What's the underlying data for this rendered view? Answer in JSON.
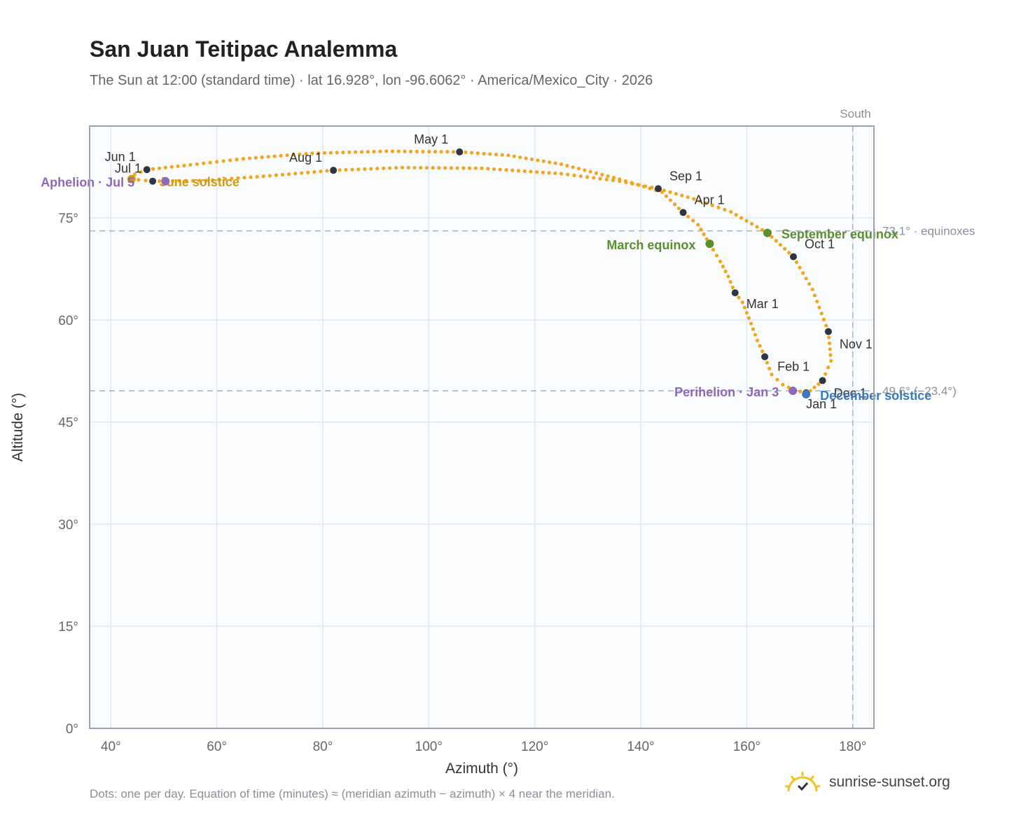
{
  "header": {
    "title": "San Juan Teitipac Analemma",
    "subtitle": "The Sun at 12:00 (standard time) · lat 16.928°, lon -96.6062° · America/Mexico_City · 2026"
  },
  "footer": {
    "note": "Dots: one per day. Equation of time (minutes) ≈ (meridian azimuth − azimuth) × 4 near the meridian.",
    "brand": "sunrise-sunset.org"
  },
  "colors": {
    "curve": "#f2a51f",
    "month_marker": "#2f3640",
    "equinox": "#5a8f2e",
    "solstice_summer": "#d29a12",
    "solstice_winter": "#3a78c0",
    "apsis": "#8e68b8",
    "plot_bg": "#f9fbfd",
    "grid": "#e4e8ee",
    "axis": "#9aa3ad",
    "refline": "#9fb3c3"
  },
  "chart_data": {
    "type": "scatter",
    "title": "San Juan Teitipac Analemma",
    "xlabel": "Azimuth (°)",
    "ylabel": "Altitude (°)",
    "xlim": [
      36,
      184
    ],
    "ylim": [
      0,
      88.5
    ],
    "x_ticks": [
      40,
      60,
      80,
      100,
      120,
      140,
      160,
      180
    ],
    "x_tick_labels": [
      "40°",
      "60°",
      "80°",
      "100°",
      "120°",
      "140°",
      "160°",
      "180°"
    ],
    "y_ticks": [
      0,
      15,
      30,
      45,
      60,
      75
    ],
    "y_tick_labels": [
      "0°",
      "15°",
      "30°",
      "45°",
      "60°",
      "75°"
    ],
    "grid": true,
    "series": [
      {
        "points": [
          [
            171.2,
            49.3
          ],
          [
            169.0,
            49.7
          ],
          [
            166.8,
            50.5
          ],
          [
            164.7,
            52.0
          ],
          [
            163.4,
            54.6
          ],
          [
            162.0,
            57.0
          ],
          [
            160.4,
            60.3
          ],
          [
            159.2,
            62.6
          ],
          [
            157.8,
            64.0
          ],
          [
            156.5,
            66.4
          ],
          [
            155.0,
            68.6
          ],
          [
            153.0,
            71.2
          ],
          [
            150.8,
            74.0
          ],
          [
            148.0,
            75.8
          ],
          [
            144.0,
            78.8
          ],
          [
            136.0,
            80.7
          ],
          [
            125.0,
            82.9
          ],
          [
            115.0,
            84.2
          ],
          [
            105.8,
            84.7
          ],
          [
            92.0,
            84.8
          ],
          [
            78.0,
            84.5
          ],
          [
            65.0,
            83.7
          ],
          [
            55.0,
            82.8
          ],
          [
            46.8,
            82.1
          ],
          [
            44.5,
            81.4
          ],
          [
            43.9,
            80.7
          ],
          [
            47.9,
            80.4
          ],
          [
            58.0,
            80.5
          ],
          [
            70.0,
            81.2
          ],
          [
            82.0,
            82.0
          ],
          [
            95.0,
            82.4
          ],
          [
            110.0,
            82.3
          ],
          [
            125.0,
            81.5
          ],
          [
            136.0,
            80.4
          ],
          [
            143.3,
            79.3
          ],
          [
            150.0,
            77.8
          ],
          [
            157.0,
            75.9
          ],
          [
            163.9,
            72.8
          ],
          [
            168.8,
            69.3
          ],
          [
            172.4,
            64.5
          ],
          [
            175.4,
            58.3
          ],
          [
            175.9,
            54.0
          ],
          [
            174.3,
            51.1
          ],
          [
            172.0,
            49.6
          ],
          [
            171.2,
            49.3
          ]
        ]
      }
    ],
    "month_markers": [
      {
        "label": "Jan 1",
        "x": 171.2,
        "y": 49.3
      },
      {
        "label": "Feb 1",
        "x": 163.4,
        "y": 54.6
      },
      {
        "label": "Mar 1",
        "x": 157.8,
        "y": 64.0
      },
      {
        "label": "Apr 1",
        "x": 148.0,
        "y": 75.8
      },
      {
        "label": "May 1",
        "x": 105.8,
        "y": 84.7
      },
      {
        "label": "Jun 1",
        "x": 46.8,
        "y": 82.1
      },
      {
        "label": "Jul 1",
        "x": 47.9,
        "y": 80.4
      },
      {
        "label": "Aug 1",
        "x": 82.0,
        "y": 82.0
      },
      {
        "label": "Sep 1",
        "x": 143.3,
        "y": 79.3
      },
      {
        "label": "Oct 1",
        "x": 168.8,
        "y": 69.3
      },
      {
        "label": "Nov 1",
        "x": 175.4,
        "y": 58.3
      },
      {
        "label": "Dec 1",
        "x": 174.3,
        "y": 51.1
      }
    ],
    "events": [
      {
        "label": "March equinox",
        "x": 153.0,
        "y": 71.2,
        "kind": "equinox"
      },
      {
        "label": "September equinox",
        "x": 163.9,
        "y": 72.8,
        "kind": "equinox"
      },
      {
        "label": "June solstice",
        "x": 43.9,
        "y": 80.7,
        "kind": "solstice_summer"
      },
      {
        "label": "December solstice",
        "x": 171.2,
        "y": 49.1,
        "kind": "solstice_winter"
      },
      {
        "label": "Aphelion · Jul 5",
        "x": 50.3,
        "y": 80.4,
        "kind": "apsis"
      },
      {
        "label": "Perihelion · Jan 3",
        "x": 168.7,
        "y": 49.6,
        "kind": "apsis"
      }
    ],
    "reference_lines": [
      {
        "axis": "y",
        "value": 73.1,
        "label": "73.1° · equinoxes"
      },
      {
        "axis": "y",
        "value": 49.6,
        "label": "49.6° (−23.4°)"
      },
      {
        "axis": "x",
        "value": 180,
        "label": "South"
      }
    ]
  }
}
